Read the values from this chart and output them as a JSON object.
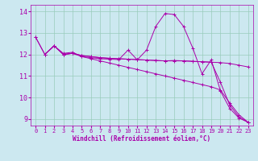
{
  "xlabel": "Windchill (Refroidissement éolien,°C)",
  "xlim": [
    -0.5,
    23.5
  ],
  "ylim": [
    8.7,
    14.3
  ],
  "yticks": [
    9,
    10,
    11,
    12,
    13,
    14
  ],
  "xticks": [
    0,
    1,
    2,
    3,
    4,
    5,
    6,
    7,
    8,
    9,
    10,
    11,
    12,
    13,
    14,
    15,
    16,
    17,
    18,
    19,
    20,
    21,
    22,
    23
  ],
  "bg_color": "#cce8f0",
  "line_color": "#aa00aa",
  "grid_color": "#99ccbb",
  "series": [
    {
      "x": [
        0,
        1,
        2,
        3,
        4,
        5,
        6,
        7,
        8,
        9,
        10,
        11,
        12,
        13,
        14,
        15,
        16,
        17,
        18,
        19,
        20,
        21,
        22,
        23
      ],
      "y": [
        12.8,
        12.0,
        12.4,
        12.05,
        12.1,
        11.9,
        11.85,
        11.8,
        11.78,
        11.76,
        12.2,
        11.75,
        12.2,
        13.3,
        13.9,
        13.85,
        13.3,
        12.3,
        11.1,
        11.75,
        10.3,
        9.5,
        9.05,
        8.85
      ]
    },
    {
      "x": [
        0,
        1,
        2,
        3,
        4,
        5,
        6,
        7,
        8,
        9,
        10,
        11,
        12,
        13,
        14,
        15,
        16,
        17,
        18,
        19,
        20,
        21,
        22,
        23
      ],
      "y": [
        12.8,
        12.0,
        12.4,
        12.0,
        12.05,
        11.9,
        11.8,
        11.7,
        11.6,
        11.5,
        11.4,
        11.3,
        11.2,
        11.1,
        11.0,
        10.9,
        10.8,
        10.7,
        10.6,
        10.5,
        10.35,
        9.75,
        9.2,
        8.85
      ]
    },
    {
      "x": [
        1,
        2,
        3,
        4,
        5,
        6,
        7,
        8,
        9,
        10,
        11,
        12,
        13,
        14,
        15,
        16,
        17,
        18,
        19,
        20,
        21,
        22,
        23
      ],
      "y": [
        12.0,
        12.4,
        12.0,
        12.05,
        11.95,
        11.9,
        11.85,
        11.82,
        11.8,
        11.78,
        11.76,
        11.74,
        11.72,
        11.7,
        11.72,
        11.7,
        11.68,
        11.66,
        11.64,
        10.7,
        9.65,
        9.1,
        8.85
      ]
    },
    {
      "x": [
        1,
        2,
        3,
        4,
        5,
        6,
        7,
        8,
        9,
        10,
        11,
        12,
        13,
        14,
        15,
        16,
        17,
        18,
        19,
        20,
        21,
        22,
        23
      ],
      "y": [
        12.0,
        12.4,
        12.0,
        12.05,
        11.95,
        11.9,
        11.85,
        11.82,
        11.8,
        11.78,
        11.76,
        11.74,
        11.72,
        11.7,
        11.7,
        11.7,
        11.68,
        11.66,
        11.64,
        11.62,
        11.58,
        11.5,
        11.42
      ]
    }
  ]
}
